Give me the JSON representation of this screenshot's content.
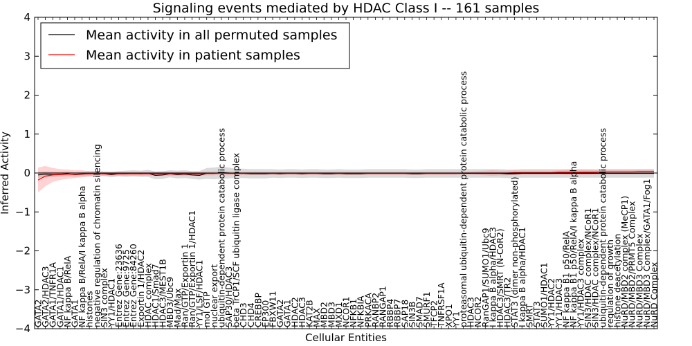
{
  "chart_data": {
    "type": "line",
    "title": "Signaling events mediated by HDAC Class I -- 161 samples",
    "xlabel": "Cellular Entities",
    "ylabel": "Inferred Activity",
    "ylim": [
      -4,
      4
    ],
    "yticks": [
      "−4",
      "−3",
      "−2",
      "−1",
      "0",
      "1",
      "2",
      "3",
      "4"
    ],
    "grid": false,
    "legend_position": "top-left",
    "categories": [
      "GATA2",
      "GATA2/HDAC3",
      "GATA1/TNFR1A",
      "GATA1/HDAC1",
      "NF kappa B/RelA",
      "GATA1",
      "NF kappa B/RelA/I kappa B alpha",
      "histones",
      "negative regulation of chromatin silencing",
      "SIN3 complex",
      "YY1/HDAC1",
      "Entrez Gene:23636",
      "Entrez Gene:9725",
      "Entrez Gene:84260",
      "Exportin 1/HDAC2",
      "HDAC complex",
      "HDAC1/Smad7",
      "HDAC3/MEST1B",
      "MBD3/Ubc9",
      "Mad/Max",
      "Ran/GTP/Exportin 1",
      "Ran/GTP/Exportin 1/HDAC1",
      "YY1/LSF/HDAC1",
      "mol GTP",
      "nuclear export",
      "ubiquitin-dependent protein catabolic process",
      "SAP30/HDAC3",
      "beta TrCP1/SCF ubiquitin ligase complex",
      "CHD3",
      "CHD4",
      "CREBBP",
      "EP300",
      "FBXW11",
      "GATA2",
      "GATA1",
      "HDAC2",
      "HDAC3",
      "KAT2B",
      "MAX",
      "MBD2",
      "MBD3",
      "MXD1",
      "NCOR1",
      "NFKB1",
      "NFKBIA",
      "PRKACA",
      "RANBP2",
      "RANGAP1",
      "RBBP4",
      "RBBP7",
      "SAP18",
      "SIN3B",
      "SMAD7",
      "SMURF1",
      "TFCP2",
      "TNFRSF1A",
      "XPO1",
      "YY1",
      "proteasomal ubiquitin-dependent protein catabolic process",
      "HDAC3",
      "NCOR2",
      "RanGAP1/SUMO1/Ubc9",
      "I kappa B alpha/HDAC3",
      "HDAC3/SMRT (N-CoR2)",
      "HDAC3/TR2",
      "STAT3 (dimer non-phosphorylated)",
      "I kappa B alpha/HDAC1",
      "SMRT",
      "STAT3",
      "SUMO1/HDAC1",
      "YY1/HDAC2",
      "YY1/HDAC3",
      "NF kappa B1 p50/RelA",
      "NF kappa B1 p50/RelA/I kappa B alpha",
      "YY1/HDAC3 complex",
      "SIN3/HDAC complex/NCoR1",
      "SIN3/HDAC complex/NCoR1",
      "ubiquitin-dependent protein catabolic process",
      "regulation of growth",
      "histone deacetylation",
      "NuRD/MBD2 complex (MeCP1)",
      "NuRD/MBD2/PRMT5 Complex",
      "NuRD/MBD3 Complex",
      "NuRD/MBD3 Complex/GATA1/Fog1",
      "NuRD Complex"
    ],
    "series": [
      {
        "name": "Mean activity in all permuted samples",
        "color": "#000000",
        "values": [
          -0.05,
          -0.03,
          -0.04,
          -0.03,
          -0.02,
          -0.04,
          -0.03,
          -0.02,
          -0.01,
          -0.02,
          -0.04,
          -0.02,
          -0.02,
          -0.01,
          -0.02,
          -0.01,
          -0.06,
          -0.05,
          -0.02,
          -0.04,
          -0.03,
          -0.05,
          -0.06,
          -0.01,
          -0.01,
          0.01,
          0.0,
          -0.01,
          -0.01,
          -0.02,
          -0.02,
          -0.02,
          -0.01,
          -0.02,
          -0.01,
          -0.01,
          -0.02,
          -0.01,
          -0.01,
          -0.02,
          -0.02,
          -0.01,
          -0.02,
          -0.02,
          -0.02,
          -0.01,
          -0.01,
          -0.01,
          -0.01,
          -0.01,
          -0.01,
          -0.02,
          -0.02,
          -0.01,
          -0.01,
          -0.01,
          -0.01,
          -0.01,
          -0.01,
          -0.01,
          -0.01,
          -0.01,
          -0.01,
          -0.01,
          -0.02,
          -0.02,
          -0.01,
          -0.01,
          -0.01,
          -0.01,
          -0.01,
          -0.01,
          -0.01,
          -0.01,
          -0.01,
          -0.01,
          -0.01,
          -0.01,
          -0.01,
          -0.01,
          -0.01,
          -0.01,
          -0.01,
          -0.01,
          -0.01
        ],
        "band": [
          0.08,
          0.07,
          0.07,
          0.06,
          0.06,
          0.06,
          0.06,
          0.07,
          0.06,
          0.06,
          0.07,
          0.07,
          0.08,
          0.08,
          0.08,
          0.09,
          0.1,
          0.1,
          0.09,
          0.1,
          0.1,
          0.1,
          0.11,
          0.14,
          0.15,
          0.16,
          0.14,
          0.12,
          0.12,
          0.12,
          0.12,
          0.12,
          0.11,
          0.11,
          0.11,
          0.11,
          0.11,
          0.11,
          0.11,
          0.11,
          0.11,
          0.11,
          0.11,
          0.11,
          0.11,
          0.11,
          0.11,
          0.11,
          0.11,
          0.11,
          0.11,
          0.11,
          0.11,
          0.11,
          0.11,
          0.11,
          0.11,
          0.11,
          0.11,
          0.11,
          0.11,
          0.11,
          0.11,
          0.11,
          0.11,
          0.11,
          0.11,
          0.11,
          0.11,
          0.11,
          0.11,
          0.11,
          0.11,
          0.11,
          0.11,
          0.11,
          0.11,
          0.11,
          0.11,
          0.11,
          0.11,
          0.11,
          0.11,
          0.11,
          0.11
        ]
      },
      {
        "name": "Mean activity in patient samples",
        "color": "#ff0000",
        "values": [
          -0.18,
          -0.08,
          -0.05,
          -0.04,
          -0.03,
          -0.03,
          -0.02,
          -0.02,
          -0.02,
          -0.02,
          -0.02,
          -0.02,
          -0.02,
          -0.02,
          -0.02,
          -0.02,
          -0.02,
          -0.02,
          -0.02,
          -0.02,
          -0.02,
          -0.02,
          -0.02,
          -0.01,
          -0.01,
          0.0,
          -0.01,
          -0.01,
          -0.01,
          -0.01,
          -0.01,
          -0.01,
          -0.01,
          -0.01,
          -0.01,
          -0.01,
          -0.01,
          -0.01,
          -0.01,
          -0.01,
          -0.01,
          -0.01,
          -0.01,
          -0.01,
          -0.01,
          -0.01,
          -0.01,
          -0.01,
          -0.01,
          -0.01,
          -0.01,
          -0.01,
          -0.01,
          -0.01,
          -0.01,
          -0.01,
          -0.01,
          -0.01,
          0.0,
          0.0,
          0.0,
          0.0,
          0.0,
          0.0,
          0.0,
          0.01,
          0.01,
          0.01,
          0.01,
          0.01,
          0.01,
          0.02,
          0.02,
          0.02,
          0.02,
          0.02,
          0.02,
          0.03,
          0.03,
          0.03,
          0.03,
          0.03,
          0.04,
          0.04,
          0.04
        ],
        "band": [
          0.32,
          0.26,
          0.18,
          0.14,
          0.12,
          0.1,
          0.09,
          0.07,
          0.06,
          0.05,
          0.05,
          0.05,
          0.05,
          0.05,
          0.05,
          0.05,
          0.05,
          0.05,
          0.05,
          0.05,
          0.05,
          0.05,
          0.05,
          0.05,
          0.05,
          0.05,
          0.05,
          0.04,
          0.04,
          0.04,
          0.04,
          0.04,
          0.04,
          0.04,
          0.04,
          0.04,
          0.04,
          0.04,
          0.04,
          0.04,
          0.04,
          0.04,
          0.04,
          0.04,
          0.04,
          0.04,
          0.04,
          0.04,
          0.04,
          0.04,
          0.04,
          0.04,
          0.04,
          0.04,
          0.04,
          0.04,
          0.04,
          0.04,
          0.04,
          0.04,
          0.05,
          0.06,
          0.07,
          0.06,
          0.06,
          0.06,
          0.05,
          0.05,
          0.05,
          0.05,
          0.05,
          0.05,
          0.06,
          0.06,
          0.06,
          0.06,
          0.05,
          0.05,
          0.05,
          0.05,
          0.05,
          0.05,
          0.05,
          0.05,
          0.05
        ]
      }
    ]
  }
}
